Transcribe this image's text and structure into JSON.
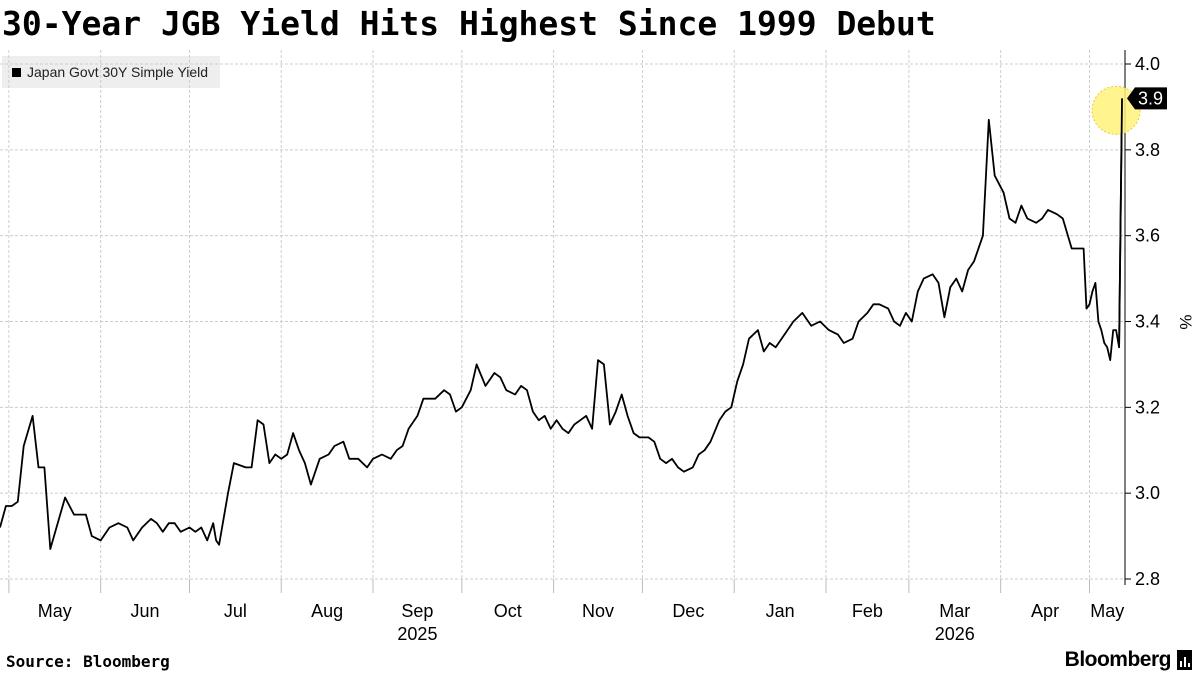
{
  "header": {
    "title": "30-Year JGB Yield Hits Highest Since 1999 Debut"
  },
  "footer": {
    "source": "Source: Bloomberg",
    "brand": "Bloomberg"
  },
  "chart_data": {
    "type": "line",
    "title": "30-Year JGB Yield Hits Highest Since 1999 Debut",
    "ylabel": "%",
    "xlabel": "",
    "ylim": [
      2.8,
      4.0
    ],
    "yticks": [
      2.8,
      3.0,
      3.2,
      3.4,
      3.6,
      3.8,
      4.0
    ],
    "ytick_labels": [
      "2.8",
      "3.0",
      "3.2",
      "3.4",
      "3.6",
      "3.8",
      "4.0"
    ],
    "x_start": "2025-04-28",
    "x_end": "2026-05-13",
    "months": [
      {
        "label": "May",
        "date": "2025-05-01"
      },
      {
        "label": "Jun",
        "date": "2025-06-01"
      },
      {
        "label": "Jul",
        "date": "2025-07-01"
      },
      {
        "label": "Aug",
        "date": "2025-08-01"
      },
      {
        "label": "Sep",
        "date": "2025-09-01"
      },
      {
        "label": "Oct",
        "date": "2025-10-01"
      },
      {
        "label": "Nov",
        "date": "2025-11-01"
      },
      {
        "label": "Dec",
        "date": "2025-12-01"
      },
      {
        "label": "Jan",
        "date": "2026-01-01"
      },
      {
        "label": "Feb",
        "date": "2026-02-01"
      },
      {
        "label": "Mar",
        "date": "2026-03-01"
      },
      {
        "label": "Apr",
        "date": "2026-04-01"
      },
      {
        "label": "May",
        "date": "2026-05-01"
      }
    ],
    "years": [
      {
        "label": "2025",
        "date": "2025-09-01"
      },
      {
        "label": "2026",
        "date": "2026-03-01"
      }
    ],
    "grid": true,
    "legend": {
      "position": "top-left",
      "entries": [
        "Japan Govt 30Y Simple Yield"
      ]
    },
    "last_value_label": "3.9",
    "highlight": {
      "date": "2026-05-12",
      "color": "#fff27a"
    },
    "colors": {
      "line": "#000000",
      "grid": "#cccccc",
      "highlight": "#fff27a",
      "legend_bg": "#eeeeee"
    },
    "series": [
      {
        "name": "Japan Govt 30Y Simple Yield",
        "points": [
          [
            "2025-04-28",
            2.92
          ],
          [
            "2025-04-30",
            2.97
          ],
          [
            "2025-05-02",
            2.97
          ],
          [
            "2025-05-04",
            2.98
          ],
          [
            "2025-05-06",
            3.11
          ],
          [
            "2025-05-09",
            3.18
          ],
          [
            "2025-05-11",
            3.06
          ],
          [
            "2025-05-13",
            3.06
          ],
          [
            "2025-05-15",
            2.87
          ],
          [
            "2025-05-20",
            2.99
          ],
          [
            "2025-05-23",
            2.95
          ],
          [
            "2025-05-27",
            2.95
          ],
          [
            "2025-05-29",
            2.9
          ],
          [
            "2025-06-01",
            2.89
          ],
          [
            "2025-06-04",
            2.92
          ],
          [
            "2025-06-07",
            2.93
          ],
          [
            "2025-06-10",
            2.92
          ],
          [
            "2025-06-12",
            2.89
          ],
          [
            "2025-06-15",
            2.92
          ],
          [
            "2025-06-18",
            2.94
          ],
          [
            "2025-06-20",
            2.93
          ],
          [
            "2025-06-22",
            2.91
          ],
          [
            "2025-06-24",
            2.93
          ],
          [
            "2025-06-26",
            2.93
          ],
          [
            "2025-06-28",
            2.91
          ],
          [
            "2025-07-01",
            2.92
          ],
          [
            "2025-07-03",
            2.91
          ],
          [
            "2025-07-05",
            2.92
          ],
          [
            "2025-07-07",
            2.89
          ],
          [
            "2025-07-09",
            2.93
          ],
          [
            "2025-07-10",
            2.89
          ],
          [
            "2025-07-11",
            2.88
          ],
          [
            "2025-07-14",
            3.0
          ],
          [
            "2025-07-16",
            3.07
          ],
          [
            "2025-07-20",
            3.06
          ],
          [
            "2025-07-22",
            3.06
          ],
          [
            "2025-07-24",
            3.17
          ],
          [
            "2025-07-26",
            3.16
          ],
          [
            "2025-07-28",
            3.07
          ],
          [
            "2025-07-30",
            3.09
          ],
          [
            "2025-08-01",
            3.08
          ],
          [
            "2025-08-03",
            3.09
          ],
          [
            "2025-08-05",
            3.14
          ],
          [
            "2025-08-07",
            3.1
          ],
          [
            "2025-08-09",
            3.07
          ],
          [
            "2025-08-11",
            3.02
          ],
          [
            "2025-08-14",
            3.08
          ],
          [
            "2025-08-17",
            3.09
          ],
          [
            "2025-08-19",
            3.11
          ],
          [
            "2025-08-22",
            3.12
          ],
          [
            "2025-08-24",
            3.08
          ],
          [
            "2025-08-27",
            3.08
          ],
          [
            "2025-08-30",
            3.06
          ],
          [
            "2025-09-01",
            3.08
          ],
          [
            "2025-09-04",
            3.09
          ],
          [
            "2025-09-07",
            3.08
          ],
          [
            "2025-09-09",
            3.1
          ],
          [
            "2025-09-11",
            3.11
          ],
          [
            "2025-09-13",
            3.15
          ],
          [
            "2025-09-16",
            3.18
          ],
          [
            "2025-09-18",
            3.22
          ],
          [
            "2025-09-20",
            3.22
          ],
          [
            "2025-09-22",
            3.22
          ],
          [
            "2025-09-25",
            3.24
          ],
          [
            "2025-09-27",
            3.23
          ],
          [
            "2025-09-29",
            3.19
          ],
          [
            "2025-10-01",
            3.2
          ],
          [
            "2025-10-04",
            3.24
          ],
          [
            "2025-10-06",
            3.3
          ],
          [
            "2025-10-09",
            3.25
          ],
          [
            "2025-10-12",
            3.28
          ],
          [
            "2025-10-14",
            3.27
          ],
          [
            "2025-10-16",
            3.24
          ],
          [
            "2025-10-19",
            3.23
          ],
          [
            "2025-10-21",
            3.25
          ],
          [
            "2025-10-23",
            3.24
          ],
          [
            "2025-10-25",
            3.19
          ],
          [
            "2025-10-27",
            3.17
          ],
          [
            "2025-10-29",
            3.18
          ],
          [
            "2025-10-31",
            3.15
          ],
          [
            "2025-11-02",
            3.17
          ],
          [
            "2025-11-04",
            3.15
          ],
          [
            "2025-11-06",
            3.14
          ],
          [
            "2025-11-08",
            3.16
          ],
          [
            "2025-11-10",
            3.17
          ],
          [
            "2025-11-12",
            3.18
          ],
          [
            "2025-11-14",
            3.15
          ],
          [
            "2025-11-16",
            3.31
          ],
          [
            "2025-11-18",
            3.3
          ],
          [
            "2025-11-20",
            3.16
          ],
          [
            "2025-11-22",
            3.19
          ],
          [
            "2025-11-24",
            3.23
          ],
          [
            "2025-11-26",
            3.18
          ],
          [
            "2025-11-28",
            3.14
          ],
          [
            "2025-11-30",
            3.13
          ],
          [
            "2025-12-03",
            3.13
          ],
          [
            "2025-12-05",
            3.12
          ],
          [
            "2025-12-07",
            3.08
          ],
          [
            "2025-12-09",
            3.07
          ],
          [
            "2025-12-11",
            3.08
          ],
          [
            "2025-12-13",
            3.06
          ],
          [
            "2025-12-15",
            3.05
          ],
          [
            "2025-12-18",
            3.06
          ],
          [
            "2025-12-20",
            3.09
          ],
          [
            "2025-12-22",
            3.1
          ],
          [
            "2025-12-24",
            3.12
          ],
          [
            "2025-12-27",
            3.17
          ],
          [
            "2025-12-29",
            3.19
          ],
          [
            "2025-12-31",
            3.2
          ],
          [
            "2026-01-02",
            3.26
          ],
          [
            "2026-01-04",
            3.3
          ],
          [
            "2026-01-06",
            3.36
          ],
          [
            "2026-01-09",
            3.38
          ],
          [
            "2026-01-11",
            3.33
          ],
          [
            "2026-01-13",
            3.35
          ],
          [
            "2026-01-15",
            3.34
          ],
          [
            "2026-01-17",
            3.36
          ],
          [
            "2026-01-19",
            3.38
          ],
          [
            "2026-01-21",
            3.4
          ],
          [
            "2026-01-24",
            3.42
          ],
          [
            "2026-01-27",
            3.39
          ],
          [
            "2026-01-30",
            3.4
          ],
          [
            "2026-02-02",
            3.38
          ],
          [
            "2026-02-05",
            3.37
          ],
          [
            "2026-02-07",
            3.35
          ],
          [
            "2026-02-10",
            3.36
          ],
          [
            "2026-02-12",
            3.4
          ],
          [
            "2026-02-15",
            3.42
          ],
          [
            "2026-02-17",
            3.44
          ],
          [
            "2026-02-19",
            3.44
          ],
          [
            "2026-02-22",
            3.43
          ],
          [
            "2026-02-24",
            3.4
          ],
          [
            "2026-02-26",
            3.39
          ],
          [
            "2026-02-28",
            3.42
          ],
          [
            "2026-03-02",
            3.4
          ],
          [
            "2026-03-04",
            3.47
          ],
          [
            "2026-03-06",
            3.5
          ],
          [
            "2026-03-09",
            3.51
          ],
          [
            "2026-03-11",
            3.49
          ],
          [
            "2026-03-13",
            3.41
          ],
          [
            "2026-03-15",
            3.48
          ],
          [
            "2026-03-17",
            3.5
          ],
          [
            "2026-03-19",
            3.47
          ],
          [
            "2026-03-21",
            3.52
          ],
          [
            "2026-03-23",
            3.54
          ],
          [
            "2026-03-26",
            3.6
          ],
          [
            "2026-03-28",
            3.87
          ],
          [
            "2026-03-30",
            3.74
          ],
          [
            "2026-04-02",
            3.7
          ],
          [
            "2026-04-04",
            3.64
          ],
          [
            "2026-04-06",
            3.63
          ],
          [
            "2026-04-08",
            3.67
          ],
          [
            "2026-04-10",
            3.64
          ],
          [
            "2026-04-13",
            3.63
          ],
          [
            "2026-04-15",
            3.64
          ],
          [
            "2026-04-17",
            3.66
          ],
          [
            "2026-04-20",
            3.65
          ],
          [
            "2026-04-22",
            3.64
          ],
          [
            "2026-04-25",
            3.57
          ],
          [
            "2026-04-27",
            3.57
          ],
          [
            "2026-04-29",
            3.57
          ],
          [
            "2026-04-30",
            3.43
          ],
          [
            "2026-05-01",
            3.44
          ],
          [
            "2026-05-02",
            3.47
          ],
          [
            "2026-05-03",
            3.49
          ],
          [
            "2026-05-04",
            3.4
          ],
          [
            "2026-05-05",
            3.38
          ],
          [
            "2026-05-06",
            3.35
          ],
          [
            "2026-05-07",
            3.34
          ],
          [
            "2026-05-08",
            3.31
          ],
          [
            "2026-05-09",
            3.38
          ],
          [
            "2026-05-10",
            3.38
          ],
          [
            "2026-05-11",
            3.34
          ],
          [
            "2026-05-12",
            3.92
          ]
        ]
      }
    ]
  }
}
